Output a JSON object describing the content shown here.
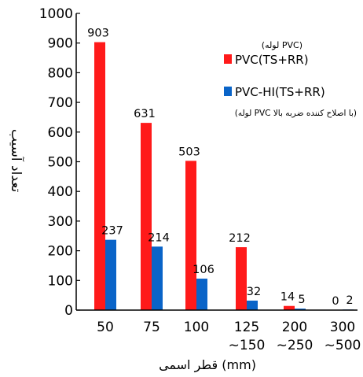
{
  "chart_data": {
    "type": "bar",
    "categories": [
      "50",
      "75",
      "100",
      "125\n~150",
      "200\n~250",
      "300\n~500"
    ],
    "series": [
      {
        "name": "PVC(TS+RR)",
        "note": "(لوله PVC)",
        "color": "#ff1a1a",
        "values": [
          903,
          631,
          503,
          212,
          14,
          0
        ]
      },
      {
        "name": "PVC-HI(TS+RR)",
        "note": "(لوله PVC با اصلاح کننده ضربه بالا)",
        "color": "#0a64c8",
        "values": [
          237,
          214,
          106,
          32,
          5,
          2
        ]
      }
    ],
    "xlabel": "قطر اسمی (mm)",
    "ylabel": "تعداد آسیب",
    "ylim": [
      0,
      1000
    ],
    "yticks": [
      0,
      100,
      200,
      300,
      400,
      500,
      600,
      700,
      800,
      900,
      1000
    ],
    "legend_position": "top-right",
    "grid": false
  }
}
